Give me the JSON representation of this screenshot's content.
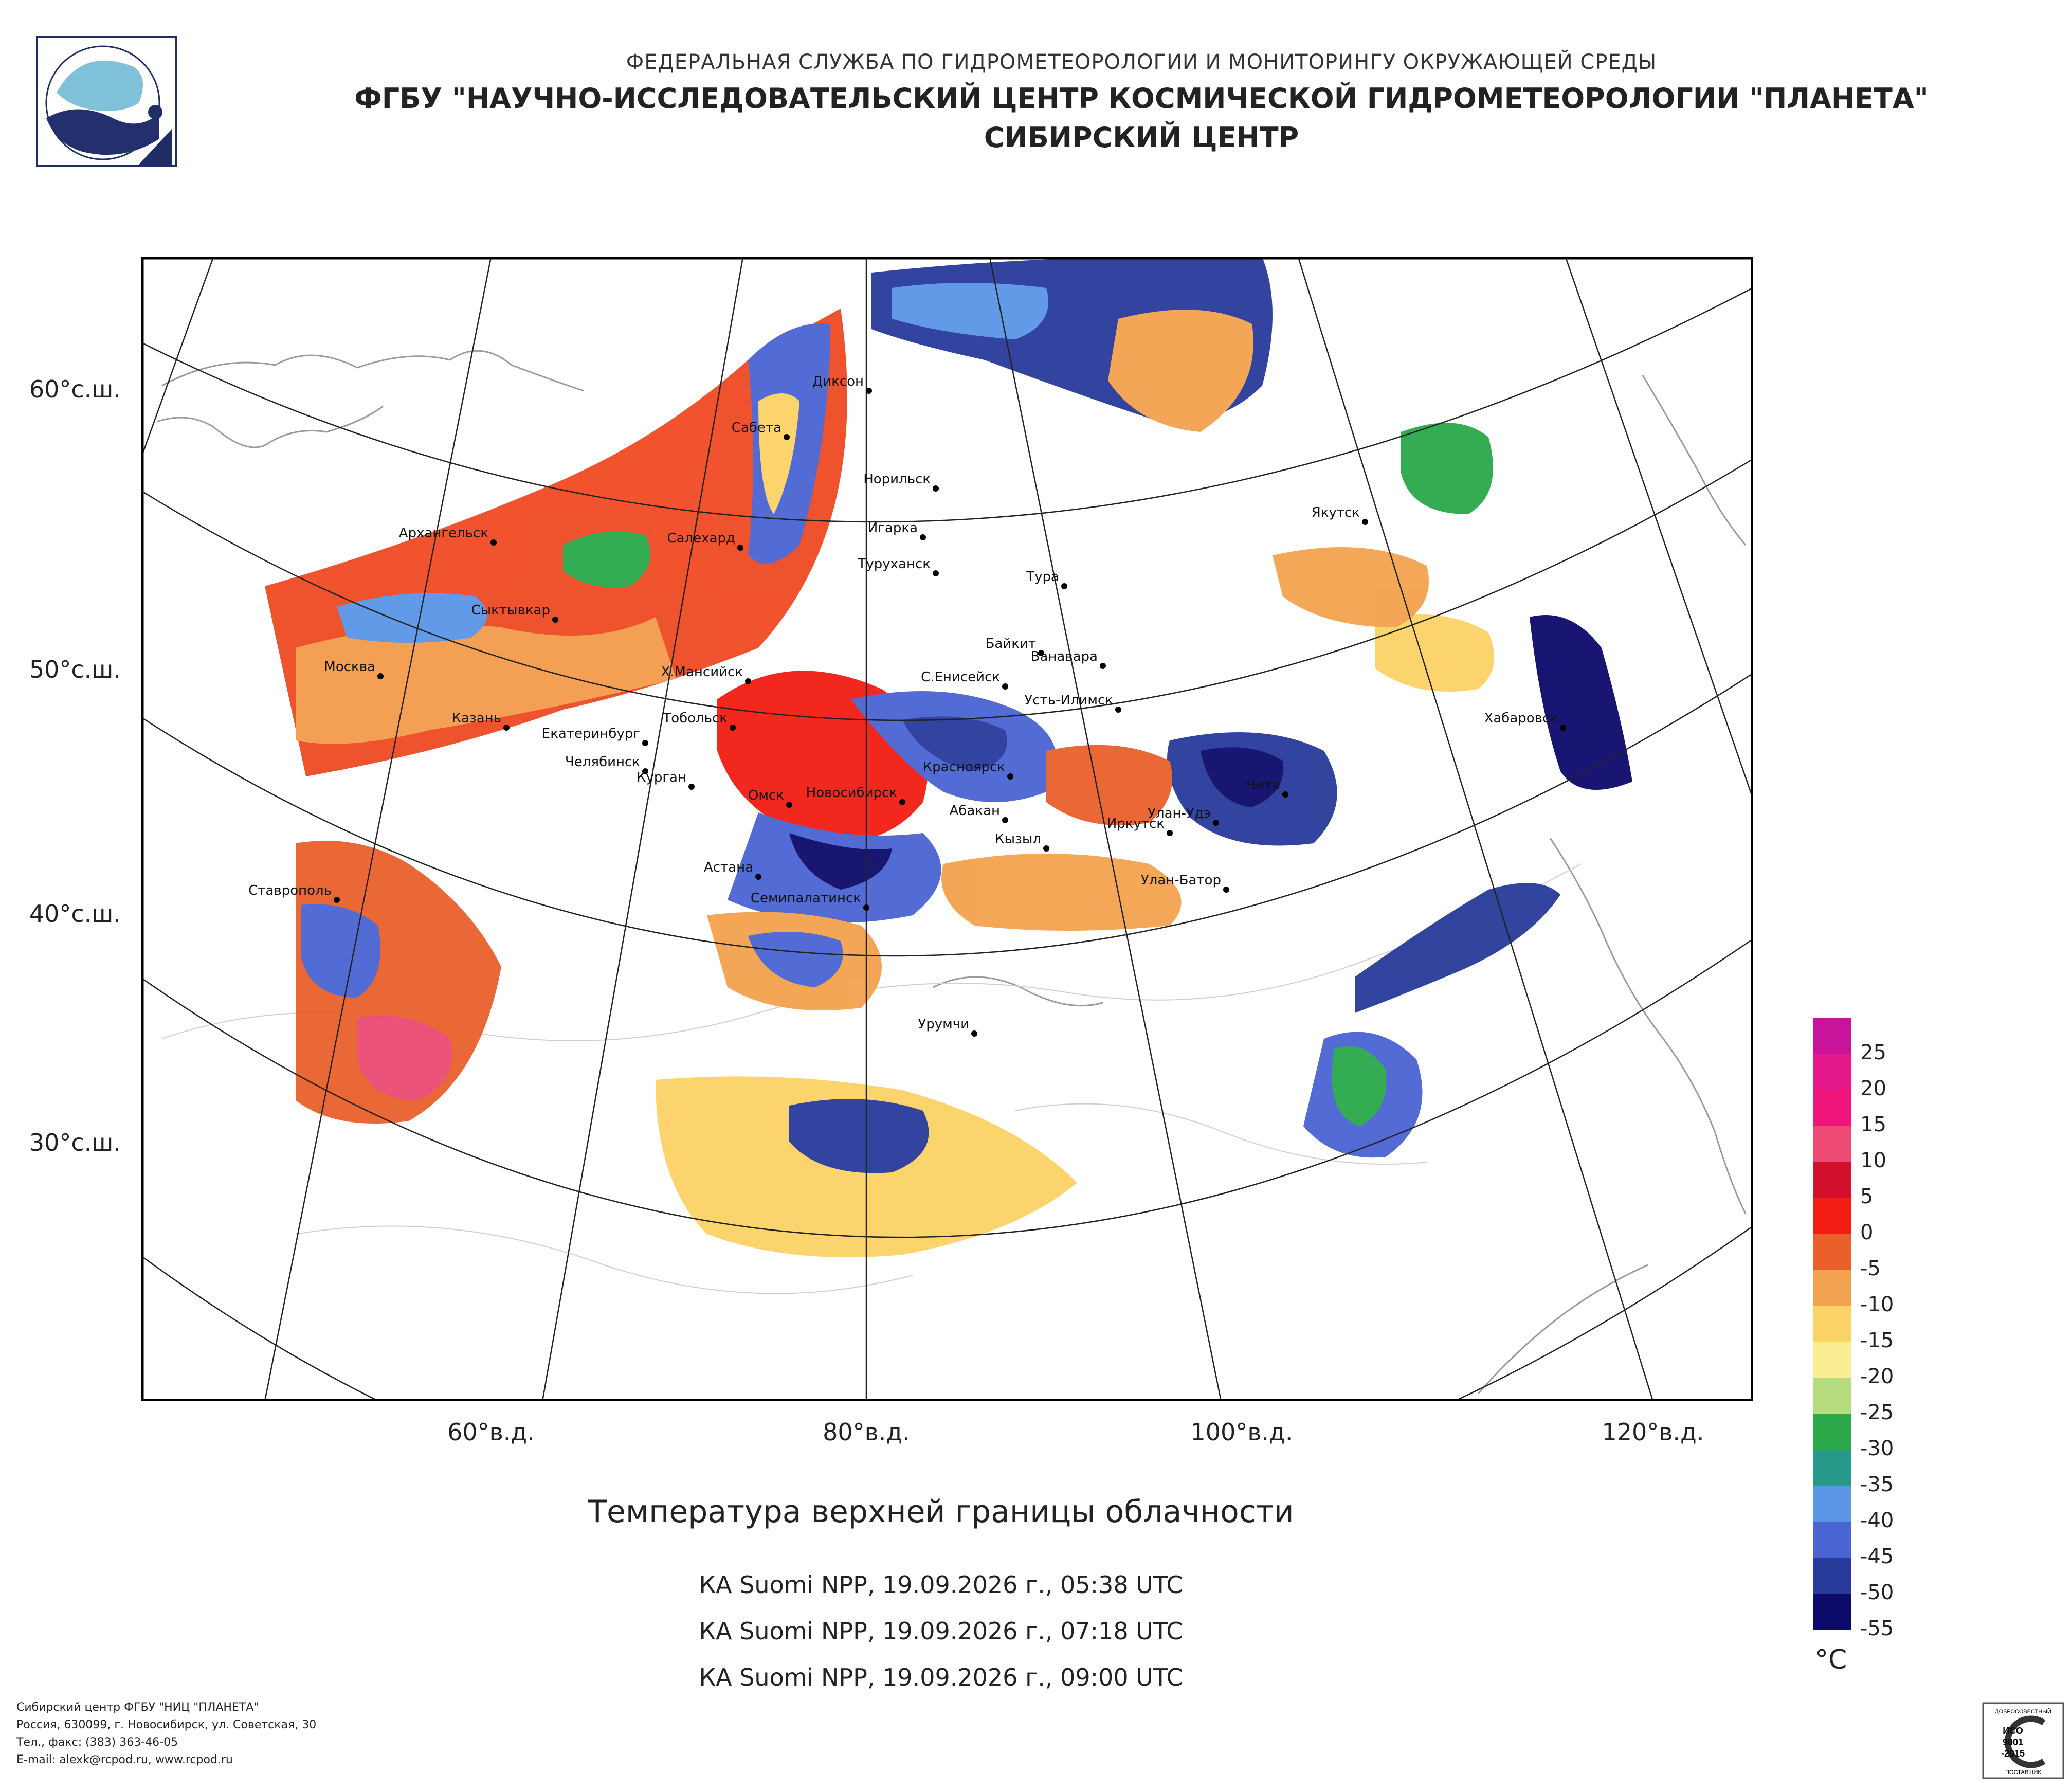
{
  "header": {
    "agency": "ФЕДЕРАЛЬНАЯ СЛУЖБА ПО ГИДРОМЕТЕОРОЛОГИИ И МОНИТОРИНГУ ОКРУЖАЮЩЕЙ СРЕДЫ",
    "institution": "ФГБУ \"НАУЧНО-ИССЛЕДОВАТЕЛЬСКИЙ ЦЕНТР КОСМИЧЕСКОЙ ГИДРОМЕТЕОРОЛОГИИ \"ПЛАНЕТА\"",
    "center": "СИБИРСКИЙ ЦЕНТР"
  },
  "map": {
    "lat_labels": [
      "60°с.ш.",
      "50°с.ш.",
      "40°с.ш.",
      "30°с.ш."
    ],
    "lon_labels": [
      "60°в.д.",
      "80°в.д.",
      "100°в.д.",
      "120°в.д."
    ],
    "cities": [
      "Диксон",
      "Сабета",
      "Норильск",
      "Игарка",
      "Салехард",
      "Туруханск",
      "Архангельск",
      "Тура",
      "Якутск",
      "Сыктывкар",
      "Байкит",
      "Ванавара",
      "Х.Мансийск",
      "С.Енисейск",
      "Москва",
      "Усть-Илимск",
      "Хабаровск",
      "Казань",
      "Тобольск",
      "Екатеринбург",
      "Челябинск",
      "Курган",
      "Красноярск",
      "Чита",
      "Омск",
      "Новосибирск",
      "Абакан",
      "Улан-Удэ",
      "Иркутск",
      "Кызыл",
      "Астана",
      "Улан-Батор",
      "Ставрополь",
      "Семипалатинск",
      "Урумчи"
    ]
  },
  "title": "Температура верхней границы облачности",
  "passes": [
    "КА Suomi NPP, 19.09.2026 г., 05:38 UTC",
    "КА Suomi NPP, 19.09.2026 г., 07:18 UTC",
    "КА Suomi NPP, 19.09.2026 г., 09:00 UTC"
  ],
  "legend": {
    "unit": "°C",
    "labels": [
      "25",
      "20",
      "15",
      "10",
      "5",
      "0",
      "-5",
      "-10",
      "-15",
      "-20",
      "-25",
      "-30",
      "-35",
      "-40",
      "-45",
      "-50",
      "-55"
    ],
    "colors": [
      "#c8139b",
      "#e6198c",
      "#f0157a",
      "#ec4a73",
      "#d3102b",
      "#f21c13",
      "#e9602b",
      "#f2a24e",
      "#fbd266",
      "#fbee92",
      "#b5dd80",
      "#2aa84a",
      "#279a8a",
      "#5a95e6",
      "#4a64d2",
      "#283a9a",
      "#0c0a6a"
    ]
  },
  "footer": {
    "line1": "Сибирский центр ФГБУ \"НИЦ \"ПЛАНЕТА\"",
    "line2": "Россия, 630099, г. Новосибирск, ул. Советская, 30",
    "line3": "Тел., факс: (383) 363-46-05",
    "line4": "E-mail: alexk@rcpod.ru, www.rcpod.ru"
  },
  "iso": {
    "top": "ДОБРОСОВЕСТНЫЙ",
    "l1": "ИСО",
    "l2": "9001",
    "l3": "-2015",
    "bottom": "ПОСТАВЩИК"
  }
}
